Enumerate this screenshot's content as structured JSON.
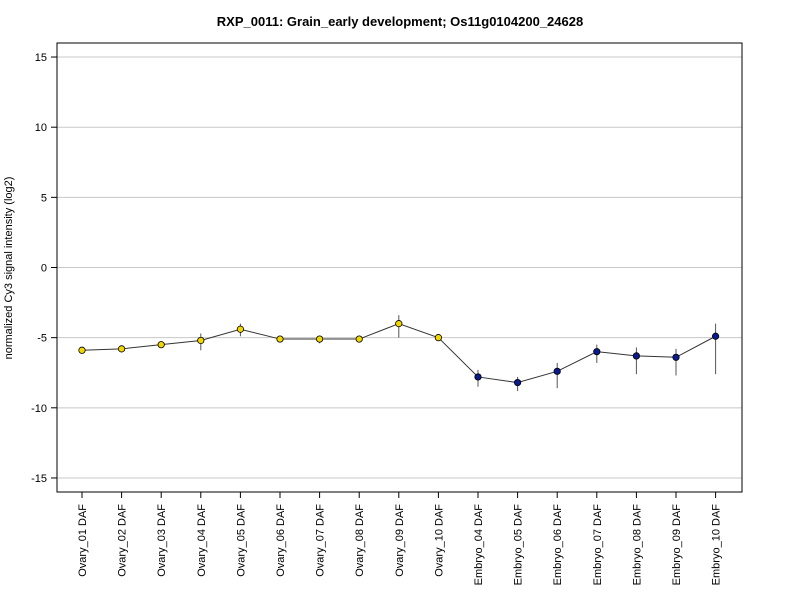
{
  "chart_data": {
    "type": "line",
    "title": "RXP_0011: Grain_early development; Os11g0104200_24628",
    "ylabel": "normalized Cy3 signal intensity (log2)",
    "xlabel": "",
    "ylim": [
      -16,
      16
    ],
    "yticks": [
      -15,
      -10,
      -5,
      0,
      5,
      10,
      15
    ],
    "grid": "horizontal",
    "categories": [
      "Ovary_01 DAF",
      "Ovary_02 DAF",
      "Ovary_03 DAF",
      "Ovary_04 DAF",
      "Ovary_05 DAF",
      "Ovary_06 DAF",
      "Ovary_07 DAF",
      "Ovary_08 DAF",
      "Ovary_09 DAF",
      "Ovary_10 DAF",
      "Embryo_04 DAF",
      "Embryo_05 DAF",
      "Embryo_06 DAF",
      "Embryo_07 DAF",
      "Embryo_08 DAF",
      "Embryo_09 DAF",
      "Embryo_10 DAF"
    ],
    "values": [
      -5.9,
      -5.8,
      -5.5,
      -5.2,
      -4.4,
      -5.1,
      -5.1,
      -5.1,
      -4.0,
      -5.0,
      -7.8,
      -8.2,
      -7.4,
      -6.0,
      -6.3,
      -6.4,
      -4.9
    ],
    "error_low": [
      -5.9,
      -5.8,
      -5.5,
      -5.9,
      -4.9,
      -5.3,
      -5.4,
      -5.2,
      -5.0,
      -5.1,
      -8.5,
      -8.8,
      -8.6,
      -6.8,
      -7.6,
      -7.7,
      -7.6
    ],
    "error_high": [
      -5.8,
      -5.7,
      -5.4,
      -4.7,
      -4.0,
      -4.9,
      -4.9,
      -5.0,
      -3.4,
      -4.8,
      -7.3,
      -7.8,
      -6.8,
      -5.5,
      -5.7,
      -5.8,
      -4.0
    ],
    "point_colors": [
      "#f2d600",
      "#f2d600",
      "#f2d600",
      "#f2d600",
      "#f2d600",
      "#f2d600",
      "#f2d600",
      "#f2d600",
      "#f2d600",
      "#f2d600",
      "#0a1a8c",
      "#0a1a8c",
      "#0a1a8c",
      "#0a1a8c",
      "#0a1a8c",
      "#0a1a8c",
      "#0a1a8c"
    ],
    "line_color": "#333333",
    "grid_color": "#c8c8c8"
  }
}
